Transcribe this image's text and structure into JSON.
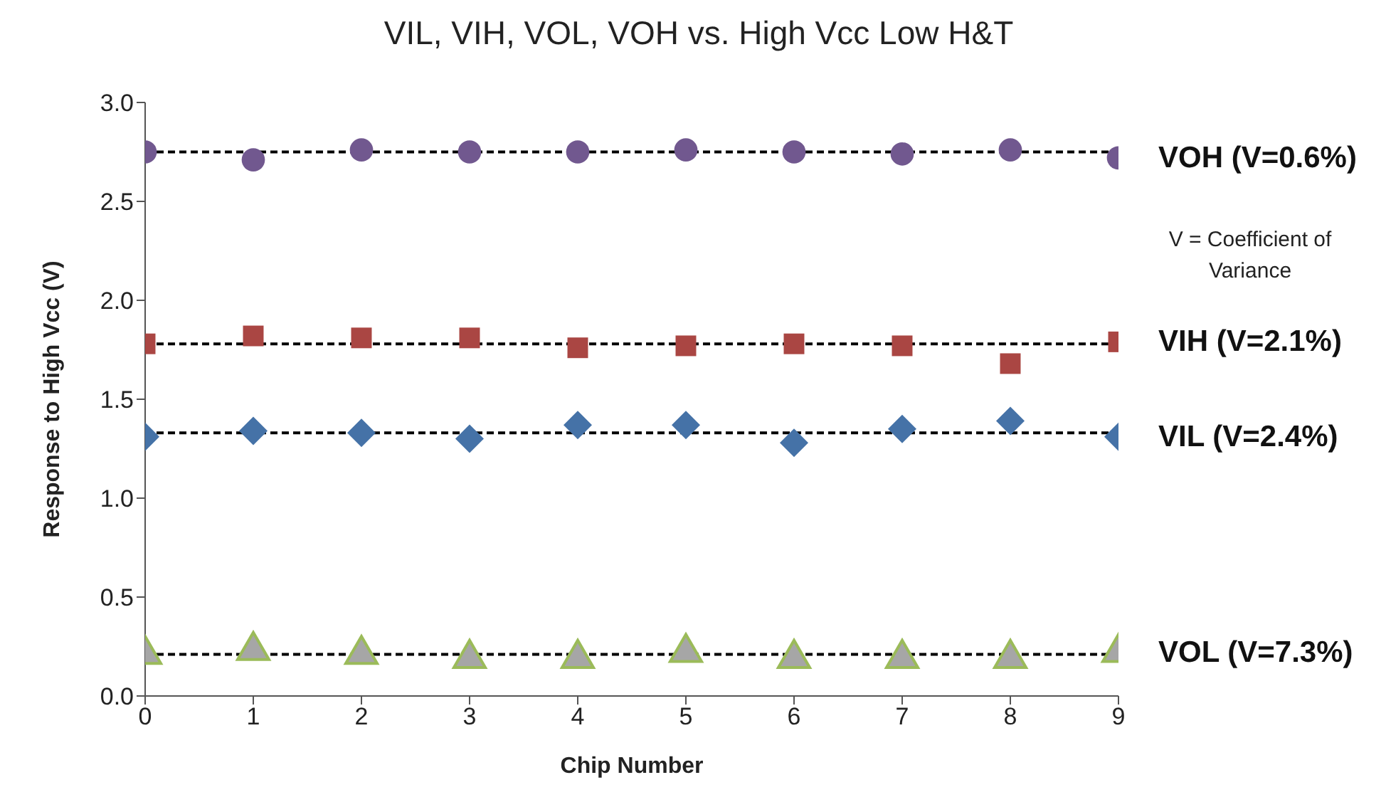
{
  "chart_data": {
    "type": "scatter",
    "title": "VIL, VIH, VOL, VOH vs. High Vcc Low H&T",
    "xlabel": "Chip Number",
    "ylabel": "Response to High Vcc (V)",
    "x": [
      0,
      1,
      2,
      3,
      4,
      5,
      6,
      7,
      8,
      9
    ],
    "series": [
      {
        "name": "VOH (V=0.6%)",
        "color": "#71588f",
        "marker": "circle",
        "values": [
          2.75,
          2.71,
          2.76,
          2.75,
          2.75,
          2.76,
          2.75,
          2.74,
          2.76,
          2.72
        ]
      },
      {
        "name": "VIH (V=2.1%)",
        "color": "#aa4643",
        "marker": "square",
        "values": [
          1.78,
          1.82,
          1.81,
          1.81,
          1.76,
          1.77,
          1.78,
          1.77,
          1.68,
          1.79
        ]
      },
      {
        "name": "VIL (V=2.4%)",
        "color": "#4572a7",
        "marker": "diamond",
        "values": [
          1.31,
          1.34,
          1.33,
          1.3,
          1.37,
          1.37,
          1.28,
          1.35,
          1.39,
          1.31
        ]
      },
      {
        "name": "VOL (V=7.3%)",
        "color": "#a6a6a6",
        "marker": "triangle",
        "values": [
          0.21,
          0.23,
          0.21,
          0.19,
          0.19,
          0.22,
          0.19,
          0.19,
          0.19,
          0.22
        ]
      }
    ],
    "ref_lines": [
      {
        "axis": "y",
        "value": 2.75,
        "color": "#000000",
        "line_style": "dashed"
      },
      {
        "axis": "y",
        "value": 1.78,
        "color": "#000000",
        "line_style": "dashed"
      },
      {
        "axis": "y",
        "value": 1.33,
        "color": "#000000",
        "line_style": "dashed"
      },
      {
        "axis": "y",
        "value": 0.21,
        "color": "#000000",
        "line_style": "dashed"
      }
    ],
    "annotations": [
      "V = Coefficient of Variance"
    ],
    "xlim": [
      0,
      9
    ],
    "xticks": [
      0,
      1,
      2,
      3,
      4,
      5,
      6,
      7,
      8,
      9
    ],
    "ylim": [
      0,
      3
    ],
    "yticks": [
      {
        "value": 0,
        "label": "0.0"
      },
      {
        "value": 0.5,
        "label": "0.5"
      },
      {
        "value": 1,
        "label": "1.0"
      },
      {
        "value": 1.5,
        "label": "1.5"
      },
      {
        "value": 2,
        "label": "2.0"
      },
      {
        "value": 2.5,
        "label": "2.5"
      },
      {
        "value": 3,
        "label": "3.0"
      }
    ],
    "grid": false,
    "legend": false
  }
}
